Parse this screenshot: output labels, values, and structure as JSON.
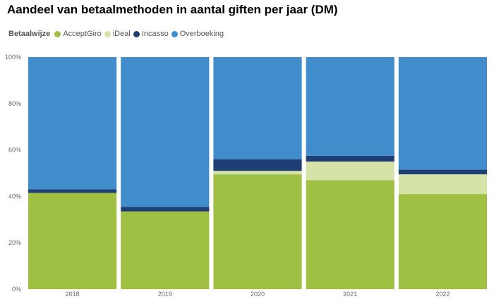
{
  "title": "Aandeel van betaalmethoden in aantal giften per jaar (DM)",
  "legend": {
    "title": "Betaalwijze",
    "items": [
      {
        "label": "AcceptGiro",
        "color": "#a0c044"
      },
      {
        "label": "iDeal",
        "color": "#d5e2a8"
      },
      {
        "label": "Incasso",
        "color": "#1f3f74"
      },
      {
        "label": "Overboeking",
        "color": "#418ccb"
      }
    ]
  },
  "chart_data": {
    "type": "bar",
    "stacked": true,
    "normalized": true,
    "categories": [
      "2018",
      "2019",
      "2020",
      "2021",
      "2022"
    ],
    "series": [
      {
        "name": "AcceptGiro",
        "color": "#a0c044",
        "values": [
          41.5,
          33.5,
          49.5,
          47,
          41
        ]
      },
      {
        "name": "iDeal",
        "color": "#d5e2a8",
        "values": [
          0,
          0,
          1.5,
          8,
          8.5
        ]
      },
      {
        "name": "Incasso",
        "color": "#1f3f74",
        "values": [
          1.5,
          2,
          5,
          2.5,
          2
        ]
      },
      {
        "name": "Overboeking",
        "color": "#418ccb",
        "values": [
          57,
          64.5,
          44,
          42.5,
          48.5
        ]
      }
    ],
    "y_ticks": [
      "0%",
      "20%",
      "40%",
      "60%",
      "80%",
      "100%"
    ],
    "ylim": [
      0,
      100
    ],
    "legend_position": "top-left",
    "grid": false
  }
}
